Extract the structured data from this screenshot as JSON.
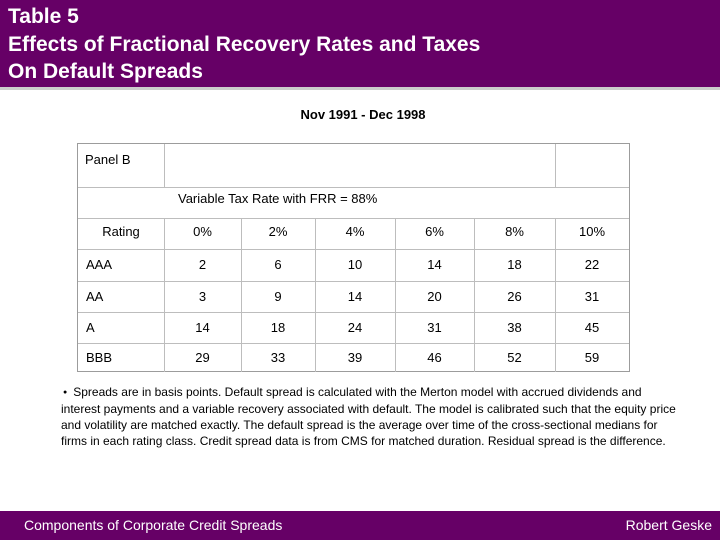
{
  "title": {
    "line1": "Table 5",
    "line2": "Effects of Fractional Recovery Rates and Taxes",
    "line3": "On Default Spreads"
  },
  "period": "Nov 1991 - Dec 1998",
  "panel": "Panel B",
  "tax_label": "Variable Tax Rate with FRR = 88%",
  "table": {
    "rating_header": "Rating",
    "columns": [
      "0%",
      "2%",
      "4%",
      "6%",
      "8%",
      "10%"
    ],
    "rows": [
      {
        "rating": "AAA",
        "values": [
          "2",
          "6",
          "10",
          "14",
          "18",
          "22"
        ]
      },
      {
        "rating": "AA",
        "values": [
          "3",
          "9",
          "14",
          "20",
          "26",
          "31"
        ]
      },
      {
        "rating": "A",
        "values": [
          "14",
          "18",
          "24",
          "31",
          "38",
          "45"
        ]
      },
      {
        "rating": "BBB",
        "values": [
          "29",
          "33",
          "39",
          "46",
          "52",
          "59"
        ]
      }
    ]
  },
  "note": {
    "bullet": "●",
    "text": "Spreads are in basis points.  Default spread is calculated with the Merton model with accrued dividends and interest payments and a variable recovery associated with default.  The model is calibrated such that the equity price and volatility are matched exactly.  The default spread is the average over time of the cross-sectional medians for firms in each rating class. Credit spread data is from CMS for matched duration.  Residual spread is the difference."
  },
  "footer": {
    "left": "Components of Corporate Credit Spreads",
    "right": "Robert Geske"
  },
  "colors": {
    "brand": "#660066",
    "grid": "#bdbdbd"
  }
}
